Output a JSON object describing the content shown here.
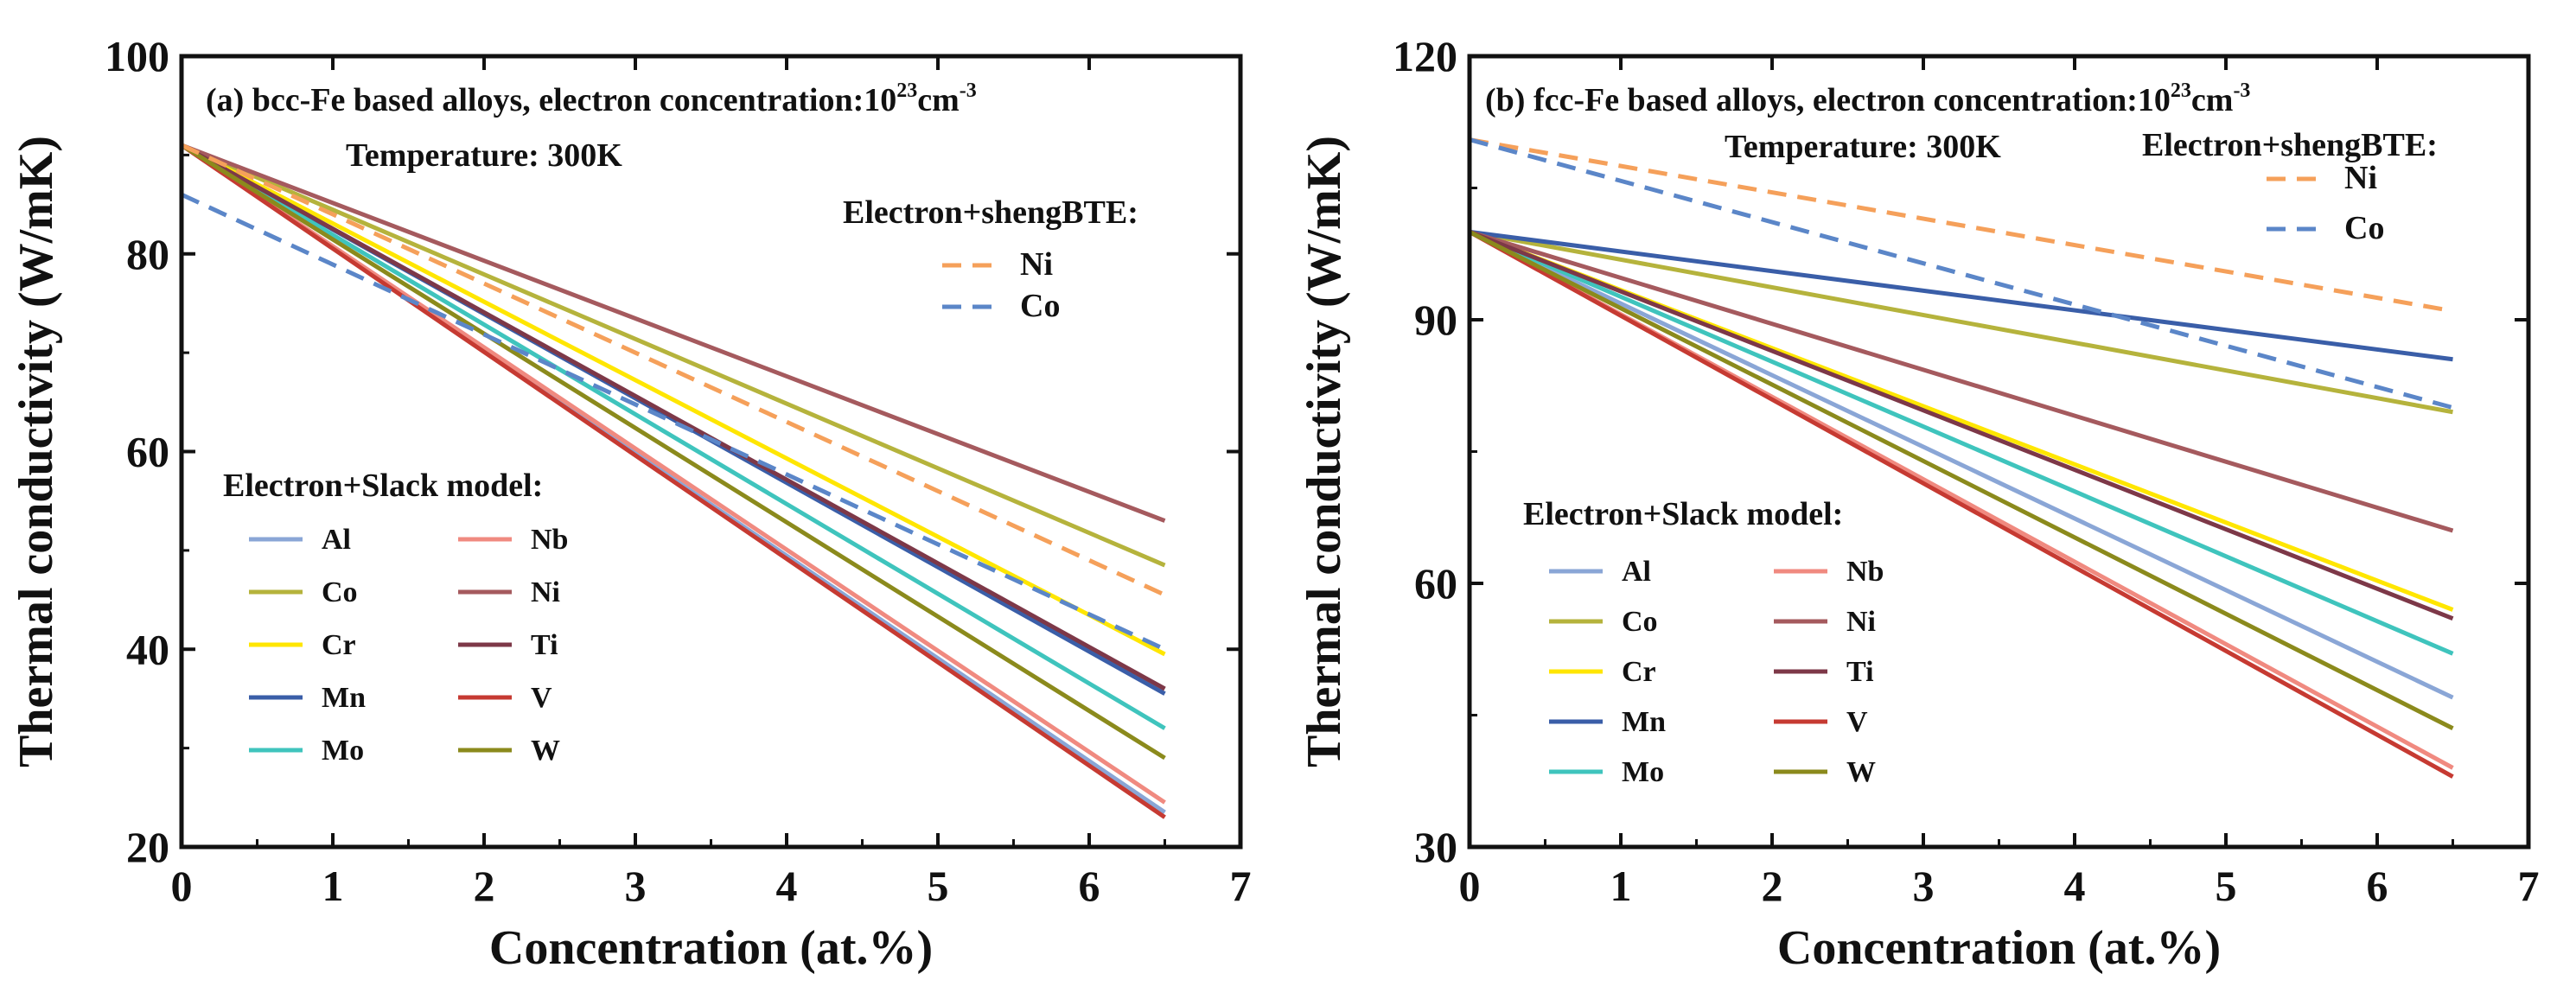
{
  "chart_data": [
    {
      "type": "line",
      "title": "(a) bcc-Fe based alloys, electron concentration:10",
      "title_sup": "23",
      "title_unit": "cm",
      "title_unit_sup": "-3",
      "subtitle": "Temperature: 300K",
      "xlabel": "Concentration (at.%)",
      "ylabel": "Thermal conductivity (W/mK)",
      "xlim": [
        0,
        7
      ],
      "ylim": [
        20,
        100
      ],
      "xticks": [
        0,
        1,
        2,
        3,
        4,
        5,
        6,
        7
      ],
      "yticks": [
        20,
        40,
        60,
        80,
        100
      ],
      "slack_legend_title": "Electron+Slack model:",
      "bte_legend_title": "Electron+shengBTE:",
      "slack_series": [
        {
          "name": "Al",
          "color": "#8aa6d6",
          "x": [
            0,
            6.5
          ],
          "y": [
            91,
            23.5
          ]
        },
        {
          "name": "Co",
          "color": "#b5b33c",
          "x": [
            0,
            6.5
          ],
          "y": [
            91,
            48.5
          ]
        },
        {
          "name": "Cr",
          "color": "#ffe600",
          "x": [
            0,
            6.5
          ],
          "y": [
            91,
            39.5
          ]
        },
        {
          "name": "Mn",
          "color": "#3a5ea8",
          "x": [
            0,
            6.5
          ],
          "y": [
            91,
            35.5
          ]
        },
        {
          "name": "Mo",
          "color": "#3fc4bd",
          "x": [
            0,
            6.5
          ],
          "y": [
            91,
            32
          ]
        },
        {
          "name": "Nb",
          "color": "#f08a80",
          "x": [
            0,
            6.5
          ],
          "y": [
            91,
            24.5
          ]
        },
        {
          "name": "Ni",
          "color": "#a55a5e",
          "x": [
            0,
            6.5
          ],
          "y": [
            91,
            53
          ]
        },
        {
          "name": "Ti",
          "color": "#7d3848",
          "x": [
            0,
            6.5
          ],
          "y": [
            91,
            36
          ]
        },
        {
          "name": "V",
          "color": "#c63a32",
          "x": [
            0,
            6.5
          ],
          "y": [
            91,
            23
          ]
        },
        {
          "name": "W",
          "color": "#8b8a1c",
          "x": [
            0,
            6.5
          ],
          "y": [
            91,
            29
          ]
        }
      ],
      "bte_series": [
        {
          "name": "Ni",
          "color": "#f5a05a",
          "x": [
            0,
            6.5
          ],
          "y": [
            91,
            45.5
          ]
        },
        {
          "name": "Co",
          "color": "#5b86c8",
          "x": [
            0,
            6.5
          ],
          "y": [
            86,
            40
          ]
        }
      ]
    },
    {
      "type": "line",
      "title": "(b) fcc-Fe based alloys, electron concentration:10",
      "title_sup": "23",
      "title_unit": "cm",
      "title_unit_sup": "-3",
      "subtitle": "Temperature: 300K",
      "xlabel": "Concentration (at.%)",
      "ylabel": "Thermal conductivity (W/mK)",
      "xlim": [
        0,
        7
      ],
      "ylim": [
        30,
        120
      ],
      "xticks": [
        0,
        1,
        2,
        3,
        4,
        5,
        6,
        7
      ],
      "yticks": [
        30,
        60,
        90,
        120
      ],
      "slack_legend_title": "Electron+Slack model:",
      "bte_legend_title": "Electron+shengBTE:",
      "slack_series": [
        {
          "name": "Al",
          "color": "#8aa6d6",
          "x": [
            0,
            6.5
          ],
          "y": [
            100,
            47
          ]
        },
        {
          "name": "Co",
          "color": "#b5b33c",
          "x": [
            0,
            6.5
          ],
          "y": [
            100,
            79.5
          ]
        },
        {
          "name": "Cr",
          "color": "#ffe600",
          "x": [
            0,
            6.5
          ],
          "y": [
            100,
            57
          ]
        },
        {
          "name": "Mn",
          "color": "#3a5ea8",
          "x": [
            0,
            6.5
          ],
          "y": [
            100,
            85.5
          ]
        },
        {
          "name": "Mo",
          "color": "#3fc4bd",
          "x": [
            0,
            6.5
          ],
          "y": [
            100,
            52
          ]
        },
        {
          "name": "Nb",
          "color": "#f08a80",
          "x": [
            0,
            6.5
          ],
          "y": [
            100,
            39
          ]
        },
        {
          "name": "Ni",
          "color": "#a55a5e",
          "x": [
            0,
            6.5
          ],
          "y": [
            100,
            66
          ]
        },
        {
          "name": "Ti",
          "color": "#7d3848",
          "x": [
            0,
            6.5
          ],
          "y": [
            100,
            56
          ]
        },
        {
          "name": "V",
          "color": "#c63a32",
          "x": [
            0,
            6.5
          ],
          "y": [
            100,
            38
          ]
        },
        {
          "name": "W",
          "color": "#8b8a1c",
          "x": [
            0,
            6.5
          ],
          "y": [
            100,
            43.5
          ]
        }
      ],
      "bte_series": [
        {
          "name": "Ni",
          "color": "#f5a05a",
          "x": [
            0,
            6.5
          ],
          "y": [
            110.5,
            91
          ]
        },
        {
          "name": "Co",
          "color": "#5b86c8",
          "x": [
            0,
            6.5
          ],
          "y": [
            110.5,
            80
          ]
        }
      ]
    }
  ]
}
